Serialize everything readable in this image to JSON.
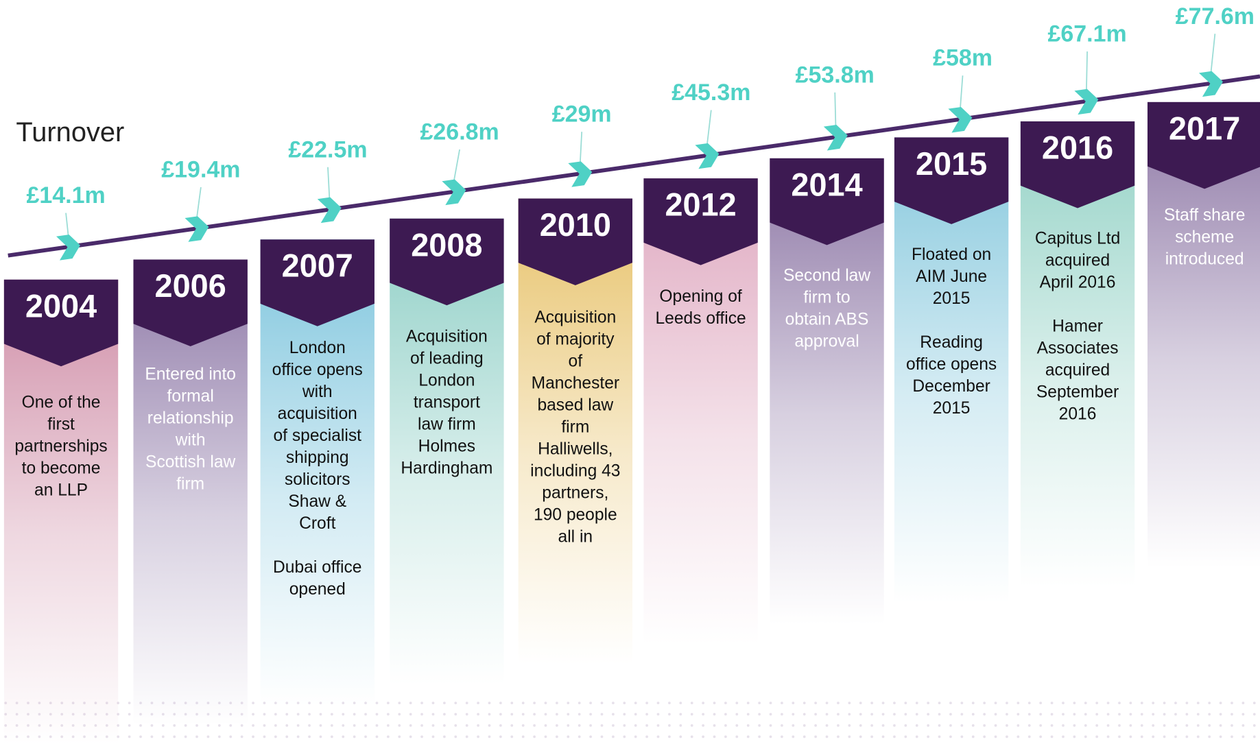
{
  "title": "Turnover",
  "items": [
    {
      "year": "2004",
      "turnover": "£14.1m",
      "paragraphs": [
        [
          "One of the",
          "first",
          "partnerships",
          "to become",
          "an LLP"
        ]
      ]
    },
    {
      "year": "2006",
      "turnover": "£19.4m",
      "paragraphs": [
        [
          "Entered into",
          "formal",
          "relationship",
          "with",
          "Scottish law",
          "firm"
        ]
      ]
    },
    {
      "year": "2007",
      "turnover": "£22.5m",
      "paragraphs": [
        [
          "London",
          "office opens",
          "with",
          "acquisition",
          "of specialist",
          "shipping",
          "solicitors",
          "Shaw &",
          "Croft"
        ],
        [
          "Dubai office",
          "opened"
        ]
      ]
    },
    {
      "year": "2008",
      "turnover": "£26.8m",
      "paragraphs": [
        [
          "Acquisition",
          "of leading",
          "London",
          "transport",
          "law firm",
          "Holmes",
          "Hardingham"
        ]
      ]
    },
    {
      "year": "2010",
      "turnover": "£29m",
      "paragraphs": [
        [
          "Acquisition",
          "of majority",
          "of",
          "Manchester",
          "based law",
          "firm",
          "Halliwells,",
          "including 43",
          "partners,",
          "190 people",
          "all in"
        ]
      ]
    },
    {
      "year": "2012",
      "turnover": "£45.3m",
      "paragraphs": [
        [
          "Opening of",
          "Leeds office"
        ]
      ]
    },
    {
      "year": "2014",
      "turnover": "£53.8m",
      "paragraphs": [
        [
          "Second law",
          "firm to",
          "obtain ABS",
          "approval"
        ]
      ]
    },
    {
      "year": "2015",
      "turnover": "£58m",
      "paragraphs": [
        [
          "Floated on",
          "AIM June",
          "2015"
        ],
        [
          "Reading",
          "office opens",
          "December",
          "2015"
        ]
      ]
    },
    {
      "year": "2016",
      "turnover": "£67.1m",
      "paragraphs": [
        [
          "Capitus Ltd",
          "acquired",
          "April 2016"
        ],
        [
          "Hamer",
          "Associates",
          "acquired",
          "September",
          "2016"
        ]
      ]
    },
    {
      "year": "2017",
      "turnover": "£77.6m",
      "paragraphs": [
        [
          "Staff share",
          "scheme",
          "introduced"
        ]
      ]
    }
  ]
}
